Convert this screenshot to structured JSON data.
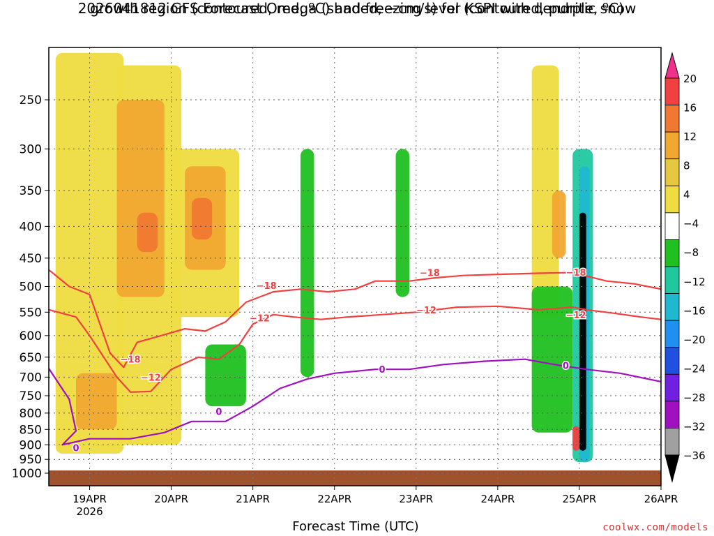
{
  "chart_data": {
    "type": "heatmap",
    "title_line1": "2026041812 GFS Forecast Omega (shaded, −cm/s) for KSPI with dendritic snow",
    "title_line2": "growth region (contoured, red, ºC) and freezing level (contoured, purple, ºC)",
    "xlabel": "Forecast Time (UTC)",
    "credit": "coolwx.com/models",
    "y_axis": {
      "scale": "log-pressure",
      "range": [
        1000,
        200
      ],
      "ticks": [
        250,
        300,
        350,
        400,
        450,
        500,
        550,
        600,
        650,
        700,
        750,
        800,
        850,
        900,
        950,
        1000
      ]
    },
    "x_axis": {
      "start": "2026-04-18T12",
      "end": "2026-04-26T00",
      "ticks": [
        {
          "label": "19APR",
          "sublabel": "2026",
          "date": "2026-04-19T00"
        },
        {
          "label": "20APR",
          "date": "2026-04-20T00"
        },
        {
          "label": "21APR",
          "date": "2026-04-21T00"
        },
        {
          "label": "22APR",
          "date": "2026-04-22T00"
        },
        {
          "label": "23APR",
          "date": "2026-04-23T00"
        },
        {
          "label": "24APR",
          "date": "2026-04-24T00"
        },
        {
          "label": "25APR",
          "date": "2026-04-25T00"
        },
        {
          "label": "26APR",
          "date": "2026-04-26T00"
        }
      ]
    },
    "colorbar": {
      "labels": [
        "20",
        "16",
        "12",
        "8",
        "4",
        "−4",
        "−8",
        "−12",
        "−16",
        "−20",
        "−24",
        "−28",
        "−32",
        "−36"
      ],
      "colors": [
        "#f0308a",
        "#f04040",
        "#f07830",
        "#f0a830",
        "#e6c840",
        "#eedc40",
        "#ffffff",
        "#20c020",
        "#20c8a0",
        "#20b8d0",
        "#2090f0",
        "#2050e0",
        "#7020e0",
        "#a010c0",
        "#a0a0a0",
        "#000000"
      ]
    },
    "contours": [
      {
        "name": "-18",
        "color": "#f04040",
        "points": [
          [
            "2026-04-18T12",
            470
          ],
          [
            "2026-04-18T18",
            500
          ],
          [
            "2026-04-19T00",
            515
          ],
          [
            "2026-04-19T06",
            640
          ],
          [
            "2026-04-19T10",
            675
          ],
          [
            "2026-04-19T14",
            615
          ],
          [
            "2026-04-19T21",
            600
          ],
          [
            "2026-04-20T04",
            585
          ],
          [
            "2026-04-20T10",
            590
          ],
          [
            "2026-04-20T16",
            570
          ],
          [
            "2026-04-20T22",
            530
          ],
          [
            "2026-04-21T06",
            510
          ],
          [
            "2026-04-21T14",
            505
          ],
          [
            "2026-04-21T22",
            510
          ],
          [
            "2026-04-22T06",
            505
          ],
          [
            "2026-04-22T12",
            490
          ],
          [
            "2026-04-22T22",
            490
          ],
          [
            "2026-04-23T06",
            484
          ],
          [
            "2026-04-23T14",
            480
          ],
          [
            "2026-04-24T00",
            478
          ],
          [
            "2026-04-24T12",
            476
          ],
          [
            "2026-04-24T20",
            475
          ],
          [
            "2026-04-25T00",
            478
          ],
          [
            "2026-04-25T08",
            490
          ],
          [
            "2026-04-25T16",
            495
          ],
          [
            "2026-04-26T00",
            505
          ]
        ]
      },
      {
        "name": "-12",
        "color": "#f04040",
        "points": [
          [
            "2026-04-18T12",
            545
          ],
          [
            "2026-04-18T20",
            560
          ],
          [
            "2026-04-19T00",
            600
          ],
          [
            "2026-04-19T08",
            700
          ],
          [
            "2026-04-19T12",
            740
          ],
          [
            "2026-04-19T18",
            738
          ],
          [
            "2026-04-20T00",
            680
          ],
          [
            "2026-04-20T08",
            650
          ],
          [
            "2026-04-20T14",
            655
          ],
          [
            "2026-04-20T20",
            620
          ],
          [
            "2026-04-21T00",
            575
          ],
          [
            "2026-04-21T06",
            555
          ],
          [
            "2026-04-21T12",
            560
          ],
          [
            "2026-04-21T20",
            565
          ],
          [
            "2026-04-22T04",
            560
          ],
          [
            "2026-04-22T14",
            555
          ],
          [
            "2026-04-23T00",
            550
          ],
          [
            "2026-04-23T12",
            540
          ],
          [
            "2026-04-24T00",
            538
          ],
          [
            "2026-04-24T12",
            545
          ],
          [
            "2026-04-24T22",
            540
          ],
          [
            "2026-04-25T02",
            545
          ],
          [
            "2026-04-25T10",
            552
          ],
          [
            "2026-04-25T18",
            560
          ],
          [
            "2026-04-26T00",
            565
          ]
        ]
      },
      {
        "name": "0",
        "color": "#a010c0",
        "points": [
          [
            "2026-04-18T12",
            678
          ],
          [
            "2026-04-18T18",
            760
          ],
          [
            "2026-04-18T20",
            855
          ],
          [
            "2026-04-18T16",
            900
          ],
          [
            "2026-04-19T00",
            880
          ],
          [
            "2026-04-19T12",
            880
          ],
          [
            "2026-04-19T22",
            860
          ],
          [
            "2026-04-20T06",
            825
          ],
          [
            "2026-04-20T16",
            825
          ],
          [
            "2026-04-21T00",
            780
          ],
          [
            "2026-04-21T08",
            730
          ],
          [
            "2026-04-21T16",
            705
          ],
          [
            "2026-04-22T00",
            690
          ],
          [
            "2026-04-22T12",
            680
          ],
          [
            "2026-04-22T22",
            680
          ],
          [
            "2026-04-23T08",
            668
          ],
          [
            "2026-04-23T20",
            660
          ],
          [
            "2026-04-24T08",
            655
          ],
          [
            "2026-04-24T18",
            670
          ],
          [
            "2026-04-25T02",
            680
          ],
          [
            "2026-04-25T12",
            690
          ],
          [
            "2026-04-26T00",
            712
          ]
        ]
      }
    ],
    "contour_labels": [
      {
        "text": "−18",
        "date": "2026-04-19T12",
        "p": 655
      },
      {
        "text": "−18",
        "date": "2026-04-21T04",
        "p": 498
      },
      {
        "text": "−18",
        "date": "2026-04-23T04",
        "p": 475
      },
      {
        "text": "−18",
        "date": "2026-04-24T23",
        "p": 474
      },
      {
        "text": "−12",
        "date": "2026-04-19T18",
        "p": 700
      },
      {
        "text": "−12",
        "date": "2026-04-21T02",
        "p": 562
      },
      {
        "text": "−12",
        "date": "2026-04-23T03",
        "p": 545
      },
      {
        "text": "−12",
        "date": "2026-04-24T23",
        "p": 555
      },
      {
        "text": "0",
        "date": "2026-04-18T20",
        "p": 910
      },
      {
        "text": "0",
        "date": "2026-04-20T14",
        "p": 795
      },
      {
        "text": "0",
        "date": "2026-04-22T14",
        "p": 680
      },
      {
        "text": "0",
        "date": "2026-04-24T20",
        "p": 670
      }
    ],
    "shaded_regions": [
      {
        "band": "4 to 8",
        "t0": "2026-04-18T14",
        "t1": "2026-04-19T10",
        "p_top": 210,
        "p_bot": 930
      },
      {
        "band": "4 to 8",
        "t0": "2026-04-19T08",
        "t1": "2026-04-20T03",
        "p_top": 220,
        "p_bot": 900
      },
      {
        "band": "4 to 8",
        "t0": "2026-04-20T00",
        "t1": "2026-04-20T20",
        "p_top": 300,
        "p_bot": 560
      },
      {
        "band": "8 to 12",
        "t0": "2026-04-19T08",
        "t1": "2026-04-19T22",
        "p_top": 250,
        "p_bot": 520
      },
      {
        "band": "8 to 12",
        "t0": "2026-04-20T04",
        "t1": "2026-04-20T16",
        "p_top": 320,
        "p_bot": 470
      },
      {
        "band": "8 to 12",
        "t0": "2026-04-18T20",
        "t1": "2026-04-19T08",
        "p_top": 690,
        "p_bot": 850
      },
      {
        "band": "12 to 16",
        "t0": "2026-04-19T14",
        "t1": "2026-04-19T20",
        "p_top": 380,
        "p_bot": 440
      },
      {
        "band": "12 to 16",
        "t0": "2026-04-20T06",
        "t1": "2026-04-20T12",
        "p_top": 360,
        "p_bot": 420
      },
      {
        "band": "-4 to -8",
        "t0": "2026-04-20T10",
        "t1": "2026-04-20T22",
        "p_top": 620,
        "p_bot": 780
      },
      {
        "band": "-4 to -8",
        "t0": "2026-04-21T14",
        "t1": "2026-04-21T18",
        "p_top": 300,
        "p_bot": 700
      },
      {
        "band": "-4 to -8",
        "t0": "2026-04-22T18",
        "t1": "2026-04-22T22",
        "p_top": 300,
        "p_bot": 520
      },
      {
        "band": "4 to 8",
        "t0": "2026-04-24T10",
        "t1": "2026-04-24T18",
        "p_top": 220,
        "p_bot": 560
      },
      {
        "band": "8 to 12",
        "t0": "2026-04-24T16",
        "t1": "2026-04-24T20",
        "p_top": 350,
        "p_bot": 450
      },
      {
        "band": "-4 to -8",
        "t0": "2026-04-24T10",
        "t1": "2026-04-24T22",
        "p_top": 500,
        "p_bot": 860
      },
      {
        "band": "-8 to -12",
        "t0": "2026-04-24T22",
        "t1": "2026-04-25T04",
        "p_top": 300,
        "p_bot": 960
      },
      {
        "band": "-12 to -16",
        "t0": "2026-04-25T00",
        "t1": "2026-04-25T03",
        "p_top": 320,
        "p_bot": 960
      },
      {
        "band": "16 to 20",
        "t0": "2026-04-24T22",
        "t1": "2026-04-25T00",
        "p_top": 840,
        "p_bot": 920
      },
      {
        "band": "below -36",
        "t0": "2026-04-25T00",
        "t1": "2026-04-25T02",
        "p_top": 380,
        "p_bot": 920
      }
    ],
    "grid": true,
    "terrain": {
      "p_top": 990,
      "color": "#a0522d"
    }
  }
}
